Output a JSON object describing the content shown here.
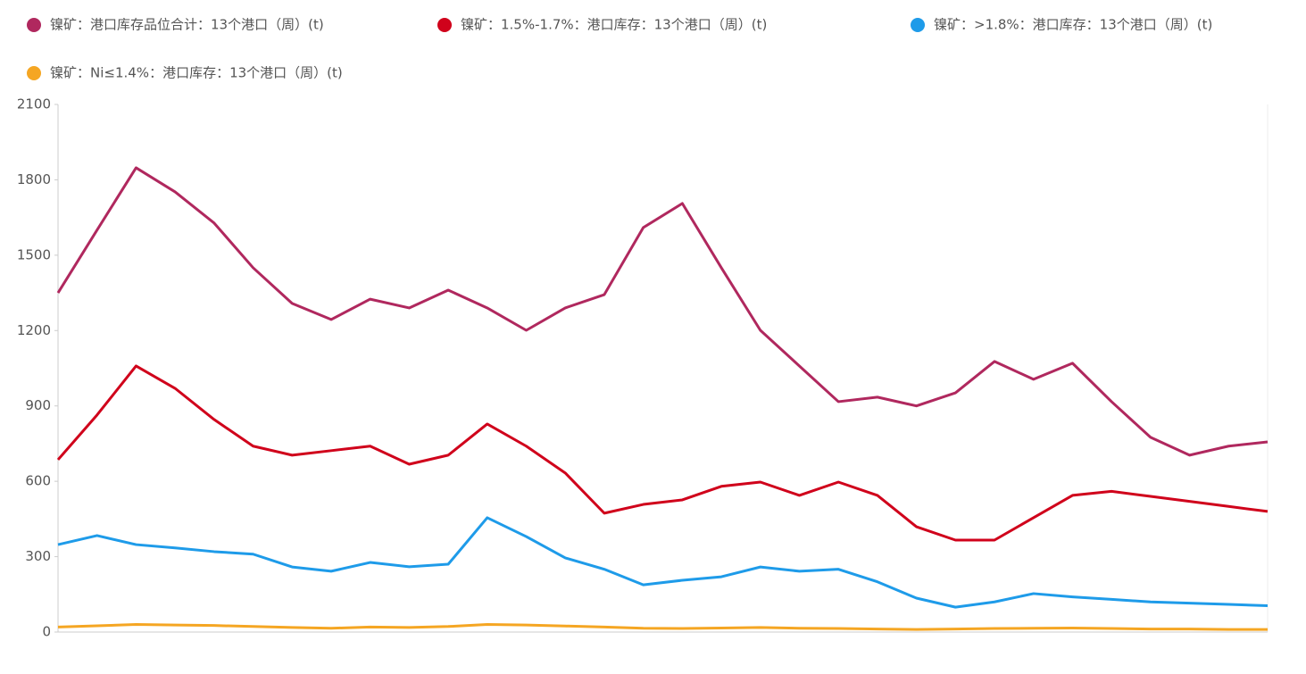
{
  "chart_data": {
    "type": "line",
    "ylim": [
      0,
      2100
    ],
    "yticks": [
      0,
      300,
      600,
      900,
      1200,
      1500,
      1800,
      2100
    ],
    "grid": false,
    "series": [
      {
        "name": "镍矿：港口库存品位合计：13个港口（周）(t)",
        "color": "#b0285e",
        "values": [
          1350,
          1600,
          1848,
          1752,
          1628,
          1450,
          1308,
          1244,
          1325,
          1290,
          1361,
          1290,
          1201,
          1290,
          1343,
          1610,
          1706,
          1450,
          1201,
          1059,
          917,
          935,
          900,
          952,
          1077,
          1006,
          1070,
          917,
          775,
          704,
          740,
          757
        ]
      },
      {
        "name": "镍矿：1.5%-1.7%：港口库存：13个港口（周）(t)",
        "color": "#d0021b",
        "values": [
          686,
          864,
          1059,
          970,
          846,
          740,
          704,
          722,
          740,
          668,
          704,
          828,
          740,
          633,
          473,
          508,
          526,
          580,
          597,
          544,
          597,
          544,
          419,
          366,
          366,
          455,
          544,
          560,
          540,
          520,
          500,
          480
        ]
      },
      {
        "name": "镍矿：>1.8%：港口库存：13个港口（周）(t)",
        "color": "#1e9be9",
        "values": [
          348,
          384,
          348,
          335,
          320,
          310,
          259,
          242,
          277,
          260,
          270,
          455,
          380,
          295,
          250,
          188,
          206,
          220,
          259,
          242,
          250,
          200,
          135,
          99,
          120,
          153,
          140,
          130,
          120,
          115,
          110,
          105
        ]
      },
      {
        "name": "镍矿：Ni≤1.4%：港口库存：13个港口（周）(t)",
        "color": "#f5a623",
        "values": [
          20,
          25,
          30,
          28,
          26,
          22,
          18,
          15,
          20,
          18,
          22,
          30,
          28,
          24,
          20,
          15,
          14,
          16,
          18,
          15,
          14,
          12,
          10,
          12,
          14,
          15,
          16,
          14,
          12,
          12,
          10,
          10
        ]
      }
    ]
  }
}
